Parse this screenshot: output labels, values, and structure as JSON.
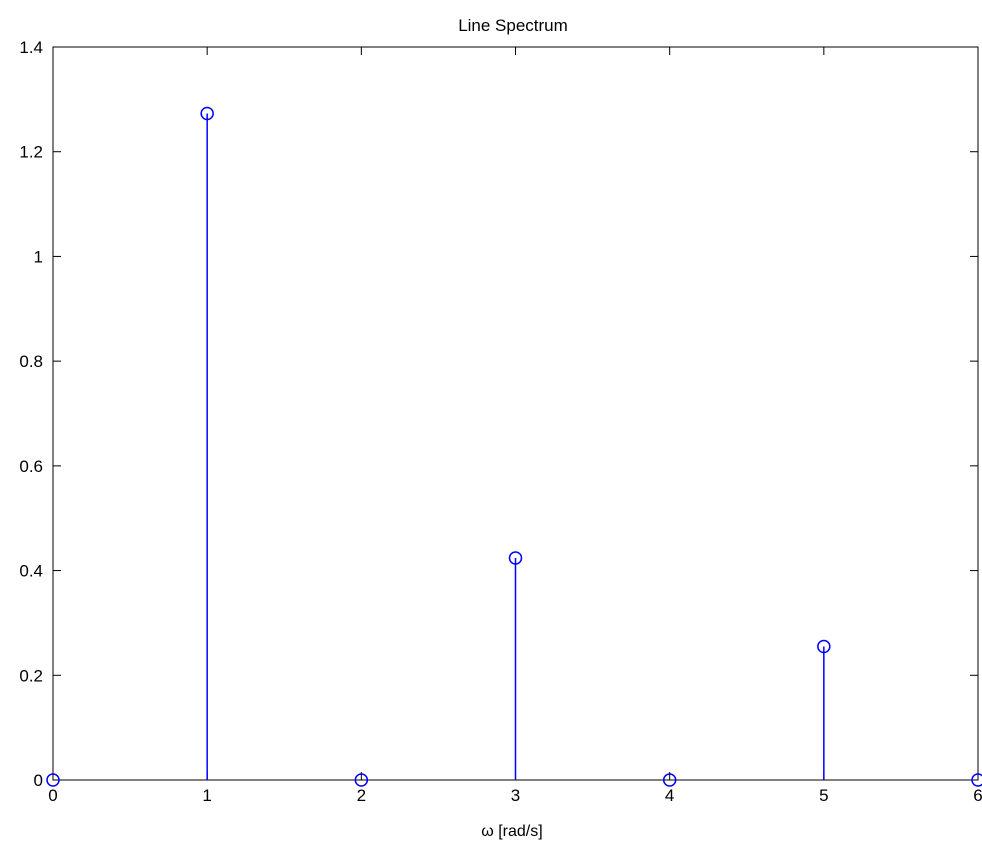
{
  "chart_data": {
    "type": "stem",
    "title": "Line Spectrum",
    "xlabel": "ω [rad/s]",
    "ylabel": "",
    "xlim": [
      0,
      6
    ],
    "ylim": [
      0,
      1.4
    ],
    "x_ticks": [
      "0",
      "1",
      "2",
      "3",
      "4",
      "5",
      "6"
    ],
    "y_ticks": [
      "0",
      "0.2",
      "0.4",
      "0.6",
      "0.8",
      "1",
      "1.2",
      "1.4"
    ],
    "grid": false,
    "series": [
      {
        "color": "#0000ff",
        "marker": "circle-open",
        "x": [
          0,
          1,
          2,
          3,
          4,
          5,
          6
        ],
        "y": [
          0,
          1.273,
          0,
          0.424,
          0,
          0.255,
          0
        ]
      }
    ]
  }
}
